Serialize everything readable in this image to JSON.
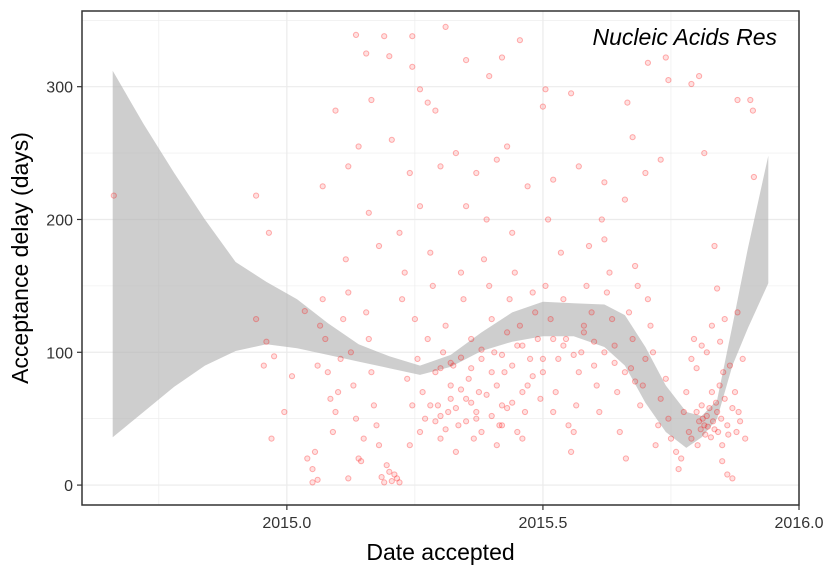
{
  "chart_data": {
    "type": "scatter",
    "annotation": "Nucleic Acids Res",
    "xlabel": "Date accepted",
    "ylabel": "Acceptance delay (days)",
    "xlim": [
      2014.6,
      2016.0
    ],
    "ylim": [
      -15,
      357
    ],
    "x_ticks": [
      2015.0,
      2015.5,
      2016.0
    ],
    "x_tick_labels": [
      "2015.0",
      "2015.5",
      "2016.0"
    ],
    "y_ticks": [
      0,
      100,
      200,
      300
    ],
    "y_tick_labels": [
      "0",
      "100",
      "200",
      "300"
    ],
    "grid": true,
    "points": [
      [
        2014.662,
        218
      ],
      [
        2014.94,
        218
      ],
      [
        2014.965,
        190
      ],
      [
        2014.94,
        125
      ],
      [
        2014.96,
        108
      ],
      [
        2014.955,
        90
      ],
      [
        2014.975,
        97
      ],
      [
        2014.97,
        35
      ],
      [
        2014.995,
        55
      ],
      [
        2015.01,
        82
      ],
      [
        2015.035,
        131
      ],
      [
        2015.04,
        20
      ],
      [
        2015.05,
        2
      ],
      [
        2015.06,
        4
      ],
      [
        2015.07,
        225
      ],
      [
        2015.095,
        282
      ],
      [
        2015.12,
        5
      ],
      [
        2015.135,
        339
      ],
      [
        2015.155,
        325
      ],
      [
        2015.165,
        290
      ],
      [
        2015.19,
        338
      ],
      [
        2015.2,
        323
      ],
      [
        2015.205,
        260
      ],
      [
        2015.245,
        338
      ],
      [
        2015.245,
        315
      ],
      [
        2015.26,
        298
      ],
      [
        2015.275,
        288
      ],
      [
        2015.29,
        282
      ],
      [
        2015.31,
        345
      ],
      [
        2015.35,
        320
      ],
      [
        2015.395,
        308
      ],
      [
        2015.42,
        322
      ],
      [
        2015.455,
        335
      ],
      [
        2015.5,
        285
      ],
      [
        2015.505,
        298
      ],
      [
        2015.555,
        295
      ],
      [
        2015.665,
        288
      ],
      [
        2015.675,
        262
      ],
      [
        2015.705,
        318
      ],
      [
        2015.74,
        322
      ],
      [
        2015.745,
        305
      ],
      [
        2015.79,
        302
      ],
      [
        2015.805,
        308
      ],
      [
        2015.815,
        250
      ],
      [
        2015.88,
        290
      ],
      [
        2015.905,
        290
      ],
      [
        2015.91,
        282
      ],
      [
        2015.855,
        125
      ],
      [
        2015.88,
        130
      ],
      [
        2015.89,
        95
      ],
      [
        2015.895,
        35
      ],
      [
        2015.912,
        232
      ],
      [
        2015.785,
        40
      ],
      [
        2015.79,
        35
      ],
      [
        2015.8,
        55
      ],
      [
        2015.802,
        30
      ],
      [
        2015.805,
        48
      ],
      [
        2015.808,
        42
      ],
      [
        2015.81,
        60
      ],
      [
        2015.812,
        50
      ],
      [
        2015.815,
        45
      ],
      [
        2015.817,
        38
      ],
      [
        2015.82,
        52
      ],
      [
        2015.822,
        44
      ],
      [
        2015.825,
        58
      ],
      [
        2015.828,
        36
      ],
      [
        2015.83,
        70
      ],
      [
        2015.832,
        48
      ],
      [
        2015.835,
        42
      ],
      [
        2015.838,
        62
      ],
      [
        2015.84,
        55
      ],
      [
        2015.842,
        40
      ],
      [
        2015.845,
        75
      ],
      [
        2015.848,
        50
      ],
      [
        2015.85,
        30
      ],
      [
        2015.852,
        85
      ],
      [
        2015.855,
        65
      ],
      [
        2015.86,
        45
      ],
      [
        2015.862,
        38
      ],
      [
        2015.865,
        90
      ],
      [
        2015.87,
        58
      ],
      [
        2015.875,
        70
      ],
      [
        2015.878,
        40
      ],
      [
        2015.882,
        55
      ],
      [
        2015.885,
        48
      ],
      [
        2015.79,
        95
      ],
      [
        2015.795,
        110
      ],
      [
        2015.8,
        88
      ],
      [
        2015.81,
        105
      ],
      [
        2015.82,
        100
      ],
      [
        2015.83,
        120
      ],
      [
        2015.835,
        180
      ],
      [
        2015.84,
        148
      ],
      [
        2015.846,
        108
      ],
      [
        2015.85,
        18
      ],
      [
        2015.86,
        8
      ],
      [
        2015.87,
        5
      ],
      [
        2015.76,
        25
      ],
      [
        2015.765,
        12
      ],
      [
        2015.77,
        20
      ],
      [
        2015.775,
        55
      ],
      [
        2015.78,
        70
      ],
      [
        2015.75,
        35
      ],
      [
        2015.745,
        50
      ],
      [
        2015.74,
        80
      ],
      [
        2015.73,
        65
      ],
      [
        2015.725,
        45
      ],
      [
        2015.72,
        30
      ],
      [
        2015.715,
        100
      ],
      [
        2015.71,
        120
      ],
      [
        2015.705,
        140
      ],
      [
        2015.7,
        95
      ],
      [
        2015.695,
        75
      ],
      [
        2015.69,
        60
      ],
      [
        2015.685,
        150
      ],
      [
        2015.68,
        165
      ],
      [
        2015.675,
        110
      ],
      [
        2015.672,
        88
      ],
      [
        2015.668,
        130
      ],
      [
        2015.662,
        20
      ],
      [
        2015.65,
        40
      ],
      [
        2015.645,
        70
      ],
      [
        2015.64,
        105
      ],
      [
        2015.635,
        125
      ],
      [
        2015.63,
        160
      ],
      [
        2015.625,
        145
      ],
      [
        2015.62,
        185
      ],
      [
        2015.615,
        200
      ],
      [
        2015.61,
        55
      ],
      [
        2015.605,
        75
      ],
      [
        2015.6,
        90
      ],
      [
        2015.595,
        130
      ],
      [
        2015.59,
        180
      ],
      [
        2015.585,
        150
      ],
      [
        2015.58,
        120
      ],
      [
        2015.575,
        100
      ],
      [
        2015.57,
        85
      ],
      [
        2015.565,
        60
      ],
      [
        2015.56,
        40
      ],
      [
        2015.555,
        25
      ],
      [
        2015.55,
        45
      ],
      [
        2015.545,
        110
      ],
      [
        2015.54,
        140
      ],
      [
        2015.535,
        175
      ],
      [
        2015.53,
        95
      ],
      [
        2015.525,
        70
      ],
      [
        2015.52,
        55
      ],
      [
        2015.515,
        125
      ],
      [
        2015.51,
        200
      ],
      [
        2015.505,
        150
      ],
      [
        2015.5,
        85
      ],
      [
        2015.495,
        65
      ],
      [
        2015.49,
        110
      ],
      [
        2015.485,
        130
      ],
      [
        2015.48,
        145
      ],
      [
        2015.475,
        95
      ],
      [
        2015.47,
        75
      ],
      [
        2015.465,
        55
      ],
      [
        2015.46,
        35
      ],
      [
        2015.455,
        120
      ],
      [
        2015.45,
        105
      ],
      [
        2015.445,
        160
      ],
      [
        2015.44,
        190
      ],
      [
        2015.435,
        140
      ],
      [
        2015.43,
        115
      ],
      [
        2015.425,
        85
      ],
      [
        2015.42,
        60
      ],
      [
        2015.415,
        45
      ],
      [
        2015.41,
        30
      ],
      [
        2015.405,
        100
      ],
      [
        2015.4,
        125
      ],
      [
        2015.395,
        150
      ],
      [
        2015.39,
        200
      ],
      [
        2015.385,
        170
      ],
      [
        2015.38,
        95
      ],
      [
        2015.375,
        70
      ],
      [
        2015.37,
        50
      ],
      [
        2015.365,
        35
      ],
      [
        2015.36,
        110
      ],
      [
        2015.355,
        80
      ],
      [
        2015.35,
        65
      ],
      [
        2015.345,
        140
      ],
      [
        2015.34,
        160
      ],
      [
        2015.335,
        45
      ],
      [
        2015.33,
        25
      ],
      [
        2015.325,
        90
      ],
      [
        2015.32,
        75
      ],
      [
        2015.315,
        55
      ],
      [
        2015.31,
        120
      ],
      [
        2015.305,
        100
      ],
      [
        2015.3,
        35
      ],
      [
        2015.295,
        60
      ],
      [
        2015.29,
        85
      ],
      [
        2015.285,
        150
      ],
      [
        2015.28,
        175
      ],
      [
        2015.275,
        110
      ],
      [
        2015.27,
        50
      ],
      [
        2015.265,
        70
      ],
      [
        2015.26,
        40
      ],
      [
        2015.255,
        95
      ],
      [
        2015.25,
        125
      ],
      [
        2015.245,
        60
      ],
      [
        2015.24,
        30
      ],
      [
        2015.235,
        80
      ],
      [
        2015.23,
        160
      ],
      [
        2015.225,
        140
      ],
      [
        2015.22,
        2
      ],
      [
        2015.215,
        5
      ],
      [
        2015.21,
        8
      ],
      [
        2015.205,
        3
      ],
      [
        2015.2,
        10
      ],
      [
        2015.195,
        15
      ],
      [
        2015.19,
        2
      ],
      [
        2015.185,
        6
      ],
      [
        2015.18,
        30
      ],
      [
        2015.175,
        45
      ],
      [
        2015.17,
        60
      ],
      [
        2015.165,
        85
      ],
      [
        2015.16,
        110
      ],
      [
        2015.155,
        130
      ],
      [
        2015.15,
        35
      ],
      [
        2015.145,
        18
      ],
      [
        2015.14,
        20
      ],
      [
        2015.135,
        50
      ],
      [
        2015.13,
        75
      ],
      [
        2015.125,
        100
      ],
      [
        2015.12,
        145
      ],
      [
        2015.115,
        170
      ],
      [
        2015.11,
        125
      ],
      [
        2015.105,
        95
      ],
      [
        2015.1,
        70
      ],
      [
        2015.095,
        55
      ],
      [
        2015.09,
        40
      ],
      [
        2015.085,
        65
      ],
      [
        2015.08,
        85
      ],
      [
        2015.075,
        110
      ],
      [
        2015.07,
        140
      ],
      [
        2015.065,
        120
      ],
      [
        2015.06,
        90
      ],
      [
        2015.055,
        25
      ],
      [
        2015.05,
        12
      ],
      [
        2015.28,
        60
      ],
      [
        2015.29,
        48
      ],
      [
        2015.3,
        52
      ],
      [
        2015.31,
        42
      ],
      [
        2015.32,
        65
      ],
      [
        2015.33,
        58
      ],
      [
        2015.34,
        72
      ],
      [
        2015.35,
        48
      ],
      [
        2015.36,
        62
      ],
      [
        2015.37,
        55
      ],
      [
        2015.38,
        40
      ],
      [
        2015.39,
        68
      ],
      [
        2015.4,
        52
      ],
      [
        2015.41,
        75
      ],
      [
        2015.42,
        45
      ],
      [
        2015.43,
        58
      ],
      [
        2015.44,
        62
      ],
      [
        2015.45,
        40
      ],
      [
        2015.46,
        70
      ],
      [
        2015.3,
        88
      ],
      [
        2015.32,
        92
      ],
      [
        2015.34,
        96
      ],
      [
        2015.36,
        88
      ],
      [
        2015.38,
        102
      ],
      [
        2015.4,
        85
      ],
      [
        2015.42,
        98
      ],
      [
        2015.44,
        90
      ],
      [
        2015.46,
        105
      ],
      [
        2015.48,
        82
      ],
      [
        2015.5,
        95
      ],
      [
        2015.52,
        110
      ],
      [
        2015.54,
        105
      ],
      [
        2015.56,
        98
      ],
      [
        2015.58,
        115
      ],
      [
        2015.6,
        108
      ],
      [
        2015.62,
        100
      ],
      [
        2015.64,
        92
      ],
      [
        2015.66,
        85
      ],
      [
        2015.68,
        78
      ],
      [
        2015.35,
        210
      ],
      [
        2015.37,
        235
      ],
      [
        2015.41,
        245
      ],
      [
        2015.47,
        225
      ],
      [
        2015.52,
        230
      ],
      [
        2015.57,
        240
      ],
      [
        2015.62,
        228
      ],
      [
        2015.66,
        215
      ],
      [
        2015.7,
        235
      ],
      [
        2015.73,
        245
      ],
      [
        2015.22,
        190
      ],
      [
        2015.24,
        235
      ],
      [
        2015.26,
        210
      ],
      [
        2015.18,
        180
      ],
      [
        2015.16,
        205
      ],
      [
        2015.12,
        240
      ],
      [
        2015.14,
        255
      ],
      [
        2015.3,
        240
      ],
      [
        2015.33,
        250
      ],
      [
        2015.43,
        255
      ]
    ],
    "smooth_ribbon": {
      "x": [
        2014.66,
        2014.72,
        2014.78,
        2014.84,
        2014.9,
        2014.96,
        2015.02,
        2015.08,
        2015.14,
        2015.2,
        2015.26,
        2015.32,
        2015.38,
        2015.44,
        2015.5,
        2015.56,
        2015.62,
        2015.66,
        2015.7,
        2015.74,
        2015.78,
        2015.81,
        2015.84,
        2015.87,
        2015.9,
        2015.94
      ],
      "ymin": [
        36,
        55,
        74,
        90,
        101,
        106,
        103,
        98,
        93,
        88,
        83,
        89,
        101,
        108,
        112,
        112,
        104,
        90,
        62,
        40,
        28,
        36,
        50,
        90,
        118,
        152
      ],
      "ymax": [
        312,
        272,
        235,
        200,
        168,
        153,
        140,
        122,
        106,
        97,
        90,
        98,
        115,
        130,
        138,
        137,
        136,
        128,
        104,
        75,
        55,
        52,
        64,
        120,
        178,
        248
      ]
    },
    "colors": {
      "points": "#ff0000",
      "ribbon": "#b3b3b3",
      "grid": "#ebebeb",
      "border": "#333333"
    }
  }
}
